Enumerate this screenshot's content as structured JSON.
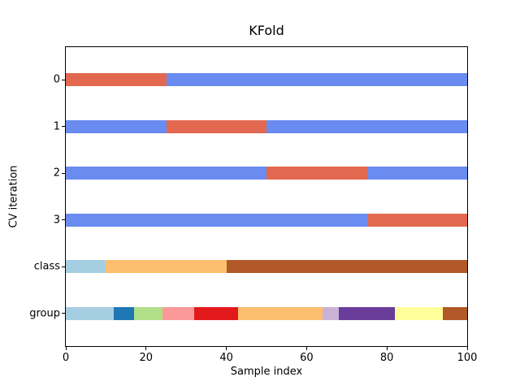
{
  "figure": {
    "background": "#ffffff",
    "text_color": "#000000"
  },
  "chart_data": {
    "type": "bar",
    "variant": "horizontal-categorical-index-bars",
    "title": "KFold",
    "xlabel": "Sample index",
    "ylabel": "CV iteration",
    "xlim": [
      0,
      100
    ],
    "ylim": [
      6.2,
      -0.2
    ],
    "grid": false,
    "legend": null,
    "x_tick_values": [
      0,
      20,
      40,
      60,
      80,
      100
    ],
    "x_tick_labels": [
      "0",
      "20",
      "40",
      "60",
      "80",
      "100"
    ],
    "y_tick_labels": [
      "0",
      "1",
      "2",
      "3",
      "class",
      "group"
    ],
    "colors": {
      "train": "#6a8bef",
      "test": "#e2694f",
      "paired_light_blue": "#a6cee3",
      "paired_dark_blue": "#1f78b4",
      "paired_green": "#b2df8a",
      "paired_pink": "#fb9a99",
      "paired_red": "#e31a1c",
      "paired_orange": "#fdbf6f",
      "paired_lavender": "#cab2d6",
      "paired_purple": "#6a3d9a",
      "paired_yellow": "#ffff99",
      "paired_brown": "#b15928"
    },
    "rows": [
      {
        "label": "0",
        "segments": [
          {
            "from": 0,
            "to": 25,
            "color": "#e2694f",
            "role": "test"
          },
          {
            "from": 25,
            "to": 100,
            "color": "#6a8bef",
            "role": "train"
          }
        ]
      },
      {
        "label": "1",
        "segments": [
          {
            "from": 0,
            "to": 25,
            "color": "#6a8bef",
            "role": "train"
          },
          {
            "from": 25,
            "to": 50,
            "color": "#e2694f",
            "role": "test"
          },
          {
            "from": 50,
            "to": 100,
            "color": "#6a8bef",
            "role": "train"
          }
        ]
      },
      {
        "label": "2",
        "segments": [
          {
            "from": 0,
            "to": 50,
            "color": "#6a8bef",
            "role": "train"
          },
          {
            "from": 50,
            "to": 75,
            "color": "#e2694f",
            "role": "test"
          },
          {
            "from": 75,
            "to": 100,
            "color": "#6a8bef",
            "role": "train"
          }
        ]
      },
      {
        "label": "3",
        "segments": [
          {
            "from": 0,
            "to": 75,
            "color": "#6a8bef",
            "role": "train"
          },
          {
            "from": 75,
            "to": 100,
            "color": "#e2694f",
            "role": "test"
          }
        ]
      },
      {
        "label": "class",
        "segments": [
          {
            "from": 0,
            "to": 10,
            "color": "#a6cee3",
            "role": "class-0"
          },
          {
            "from": 10,
            "to": 40,
            "color": "#fdbf6f",
            "role": "class-1"
          },
          {
            "from": 40,
            "to": 100,
            "color": "#b15928",
            "role": "class-2"
          }
        ]
      },
      {
        "label": "group",
        "segments": [
          {
            "from": 0,
            "to": 12,
            "color": "#a6cee3",
            "role": "group-0"
          },
          {
            "from": 12,
            "to": 17,
            "color": "#1f78b4",
            "role": "group-1"
          },
          {
            "from": 17,
            "to": 24,
            "color": "#b2df8a",
            "role": "group-2"
          },
          {
            "from": 24,
            "to": 32,
            "color": "#fb9a99",
            "role": "group-3"
          },
          {
            "from": 32,
            "to": 43,
            "color": "#e31a1c",
            "role": "group-4"
          },
          {
            "from": 43,
            "to": 64,
            "color": "#fdbf6f",
            "role": "group-5"
          },
          {
            "from": 64,
            "to": 68,
            "color": "#cab2d6",
            "role": "group-6"
          },
          {
            "from": 68,
            "to": 82,
            "color": "#6a3d9a",
            "role": "group-7"
          },
          {
            "from": 82,
            "to": 94,
            "color": "#ffff99",
            "role": "group-8"
          },
          {
            "from": 94,
            "to": 100,
            "color": "#b15928",
            "role": "group-9"
          }
        ]
      }
    ]
  }
}
